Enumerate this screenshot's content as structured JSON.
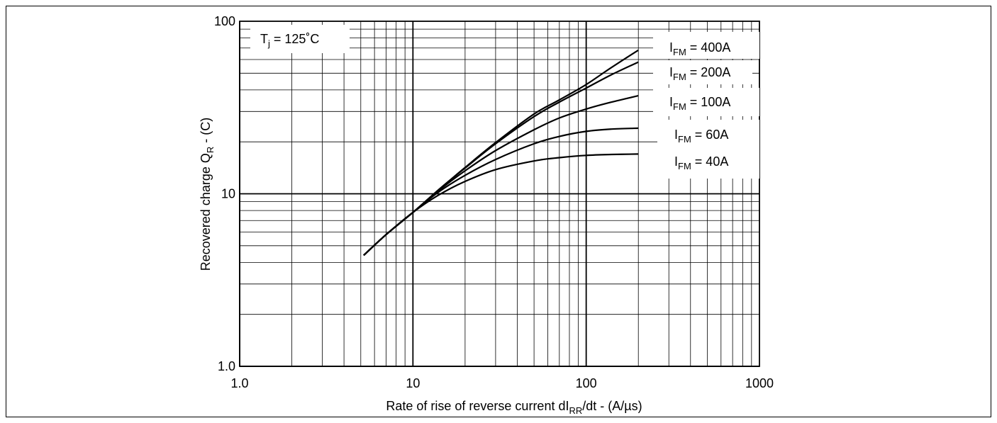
{
  "chart_data": {
    "type": "line",
    "x_scale": "log",
    "y_scale": "log",
    "xlim": [
      1,
      1000
    ],
    "ylim": [
      1,
      100
    ],
    "grid": true,
    "x_ticks": [
      "1.0",
      "10",
      "100",
      "1000"
    ],
    "y_ticks": [
      "1.0",
      "10",
      "100"
    ],
    "xlabel": {
      "main": "Rate of rise of reverse current dI",
      "sub": "RR",
      "tail": "/dt - (A/µs)"
    },
    "ylabel": {
      "main": "Recovered charge Q",
      "sub": "R",
      "tail": "  - (C)"
    },
    "condition": {
      "main": "T",
      "sub": "j",
      "tail": " = 125˚C"
    },
    "series": [
      {
        "label_main": "I",
        "label_sub": "FM",
        "label_tail": " = 400A",
        "x": [
          5.2,
          7,
          10,
          14,
          20,
          30,
          50,
          70,
          100,
          140,
          200
        ],
        "y": [
          4.4,
          5.8,
          7.8,
          10.5,
          14.2,
          19.8,
          29.0,
          35.0,
          43.0,
          54.0,
          68.0
        ]
      },
      {
        "label_main": "I",
        "label_sub": "FM",
        "label_tail": " = 200A",
        "x": [
          5.2,
          7,
          10,
          14,
          20,
          30,
          50,
          70,
          100,
          140,
          200
        ],
        "y": [
          4.4,
          5.8,
          7.8,
          10.5,
          14.1,
          19.5,
          28.0,
          34.0,
          41.0,
          49.0,
          58.0
        ]
      },
      {
        "label_main": "I",
        "label_sub": "FM",
        "label_tail": " = 100A",
        "x": [
          5.2,
          7,
          10,
          14,
          20,
          30,
          50,
          70,
          100,
          140,
          200
        ],
        "y": [
          4.4,
          5.8,
          7.8,
          10.4,
          13.6,
          17.8,
          23.5,
          27.5,
          31.0,
          34.0,
          37.0
        ]
      },
      {
        "label_main": "I",
        "label_sub": "FM",
        "label_tail": " = 60A",
        "x": [
          5.2,
          7,
          10,
          14,
          20,
          30,
          50,
          70,
          100,
          140,
          200
        ],
        "y": [
          4.4,
          5.8,
          7.8,
          10.2,
          12.8,
          15.8,
          19.5,
          21.5,
          23.0,
          23.7,
          24.0
        ]
      },
      {
        "label_main": "I",
        "label_sub": "FM",
        "label_tail": " = 40A",
        "x": [
          5.2,
          7,
          10,
          14,
          20,
          30,
          50,
          70,
          100,
          140,
          200
        ],
        "y": [
          4.4,
          5.8,
          7.8,
          9.8,
          11.8,
          13.8,
          15.5,
          16.2,
          16.7,
          16.9,
          17.0
        ]
      }
    ]
  }
}
